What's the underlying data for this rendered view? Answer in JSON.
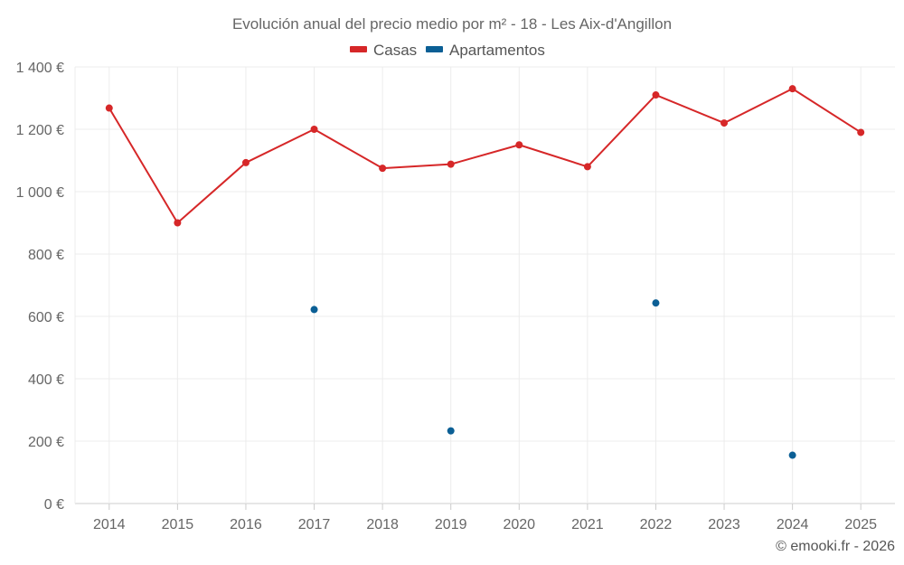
{
  "chart_data": {
    "type": "line",
    "title": "Evolución anual del precio medio por m² - 18 - Les Aix-d'Angillon",
    "xlabel": "",
    "ylabel": "",
    "categories": [
      "2014",
      "2015",
      "2016",
      "2017",
      "2018",
      "2019",
      "2020",
      "2021",
      "2022",
      "2023",
      "2024",
      "2025"
    ],
    "series": [
      {
        "name": "Casas",
        "color": "#d62728",
        "style": "line-markers",
        "values": [
          1268,
          900,
          1093,
          1200,
          1075,
          1088,
          1150,
          1080,
          1310,
          1220,
          1330,
          1190
        ]
      },
      {
        "name": "Apartamentos",
        "color": "#0b5f95",
        "style": "markers",
        "values": [
          null,
          null,
          null,
          622,
          null,
          233,
          null,
          null,
          643,
          null,
          155,
          null
        ]
      }
    ],
    "ylim": [
      0,
      1400
    ],
    "yticks": [
      0,
      200,
      400,
      600,
      800,
      1000,
      1200,
      1400
    ],
    "ytick_labels": [
      "0 €",
      "200 €",
      "400 €",
      "600 €",
      "800 €",
      "1 000 €",
      "1 200 €",
      "1 400 €"
    ],
    "grid": true,
    "legend": "top-center"
  },
  "credit": "© emooki.fr - 2026"
}
